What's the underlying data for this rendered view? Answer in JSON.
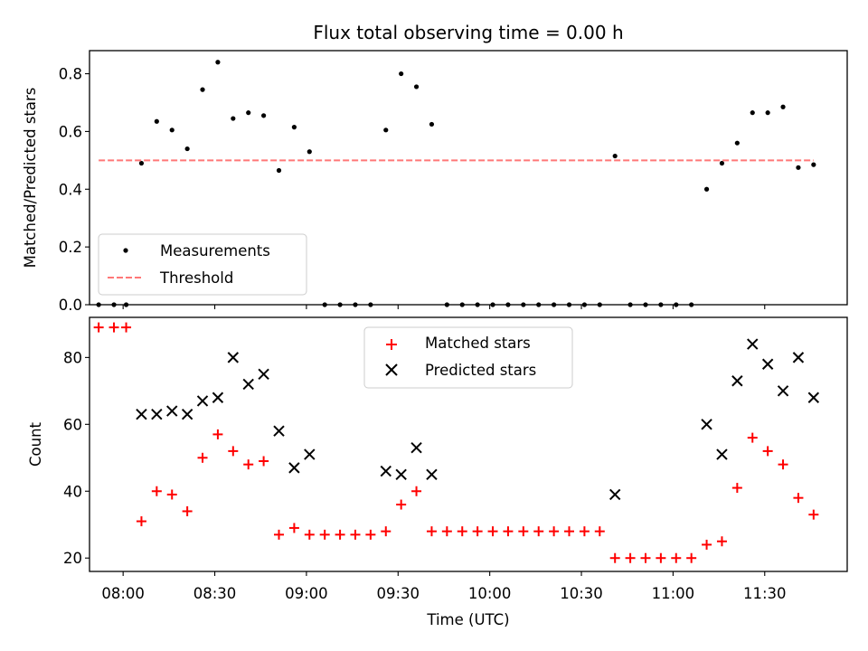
{
  "chart_data": [
    {
      "type": "scatter",
      "title": "Flux total observing time = 0.00 h",
      "xlabel": "",
      "ylabel": "Matched/Predicted stars",
      "ylim": [
        0,
        0.88
      ],
      "yticks": [
        0.0,
        0.2,
        0.4,
        0.6,
        0.8
      ],
      "ytick_labels": [
        "0.0",
        "0.2",
        "0.4",
        "0.6",
        "0.8"
      ],
      "xlim": [
        "07:49",
        "11:57"
      ],
      "legend_position": "lower-left",
      "series": [
        {
          "name": "Measurements",
          "color": "#000000",
          "marker": "dot",
          "x": [
            "07:52",
            "07:57",
            "08:01",
            "08:06",
            "08:11",
            "08:16",
            "08:21",
            "08:26",
            "08:31",
            "08:36",
            "08:41",
            "08:46",
            "08:51",
            "08:56",
            "09:01",
            "09:06",
            "09:11",
            "09:16",
            "09:21",
            "09:26",
            "09:31",
            "09:36",
            "09:41",
            "09:46",
            "09:51",
            "09:56",
            "10:01",
            "10:06",
            "10:11",
            "10:16",
            "10:21",
            "10:26",
            "10:31",
            "10:36",
            "10:41",
            "10:46",
            "10:51",
            "10:56",
            "11:01",
            "11:06",
            "11:11",
            "11:16",
            "11:21",
            "11:26",
            "11:31",
            "11:36",
            "11:41",
            "11:46"
          ],
          "y": [
            0.0,
            0.0,
            0.0,
            0.49,
            0.635,
            0.605,
            0.54,
            0.745,
            0.84,
            0.645,
            0.665,
            0.655,
            0.465,
            0.615,
            0.53,
            0.0,
            0.0,
            0.0,
            0.0,
            0.605,
            0.8,
            0.755,
            0.625,
            0.0,
            0.0,
            0.0,
            0.0,
            0.0,
            0.0,
            0.0,
            0.0,
            0.0,
            0.0,
            0.0,
            0.515,
            0.0,
            0.0,
            0.0,
            0.0,
            0.0,
            0.4,
            0.49,
            0.56,
            0.665,
            0.665,
            0.685,
            0.475,
            0.485
          ]
        },
        {
          "name": "Threshold",
          "color": "#ff7777",
          "style": "dashed",
          "x": [
            "07:52",
            "11:46"
          ],
          "y": [
            0.5,
            0.5
          ]
        }
      ]
    },
    {
      "type": "scatter",
      "title": "",
      "xlabel": "Time (UTC)",
      "ylabel": "Count",
      "ylim": [
        16,
        92
      ],
      "yticks": [
        20,
        40,
        60,
        80
      ],
      "ytick_labels": [
        "20",
        "40",
        "60",
        "80"
      ],
      "xlim": [
        "07:49",
        "11:57"
      ],
      "xticks": [
        "08:00",
        "08:30",
        "09:00",
        "09:30",
        "10:00",
        "10:30",
        "11:00",
        "11:30"
      ],
      "xtick_labels": [
        "08:00",
        "08:30",
        "09:00",
        "09:30",
        "10:00",
        "10:30",
        "11:00",
        "11:30"
      ],
      "legend_position": "upper-center",
      "series": [
        {
          "name": "Matched stars",
          "color": "#ff0000",
          "marker": "plus",
          "x": [
            "07:52",
            "07:57",
            "08:01",
            "08:06",
            "08:11",
            "08:16",
            "08:21",
            "08:26",
            "08:31",
            "08:36",
            "08:41",
            "08:46",
            "08:51",
            "08:56",
            "09:01",
            "09:06",
            "09:11",
            "09:16",
            "09:21",
            "09:26",
            "09:31",
            "09:36",
            "09:41",
            "09:46",
            "09:51",
            "09:56",
            "10:01",
            "10:06",
            "10:11",
            "10:16",
            "10:21",
            "10:26",
            "10:31",
            "10:36",
            "10:41",
            "10:46",
            "10:51",
            "10:56",
            "11:01",
            "11:06",
            "11:11",
            "11:16",
            "11:21",
            "11:26",
            "11:31",
            "11:36",
            "11:41",
            "11:46"
          ],
          "y": [
            89,
            89,
            89,
            31,
            40,
            39,
            34,
            50,
            57,
            52,
            48,
            49,
            27,
            29,
            27,
            27,
            27,
            27,
            27,
            28,
            36,
            40,
            28,
            28,
            28,
            28,
            28,
            28,
            28,
            28,
            28,
            28,
            28,
            28,
            20,
            20,
            20,
            20,
            20,
            20,
            24,
            25,
            41,
            56,
            52,
            48,
            38,
            33
          ]
        },
        {
          "name": "Predicted stars",
          "color": "#000000",
          "marker": "x",
          "x": [
            "08:06",
            "08:11",
            "08:16",
            "08:21",
            "08:26",
            "08:31",
            "08:36",
            "08:41",
            "08:46",
            "08:51",
            "08:56",
            "09:01",
            "09:26",
            "09:31",
            "09:36",
            "09:41",
            "10:41",
            "11:11",
            "11:16",
            "11:21",
            "11:26",
            "11:31",
            "11:36",
            "11:41",
            "11:46"
          ],
          "y": [
            63,
            63,
            64,
            63,
            67,
            68,
            80,
            72,
            75,
            58,
            47,
            51,
            46,
            45,
            53,
            45,
            39,
            60,
            51,
            73,
            84,
            78,
            70,
            80,
            68
          ]
        }
      ]
    }
  ]
}
